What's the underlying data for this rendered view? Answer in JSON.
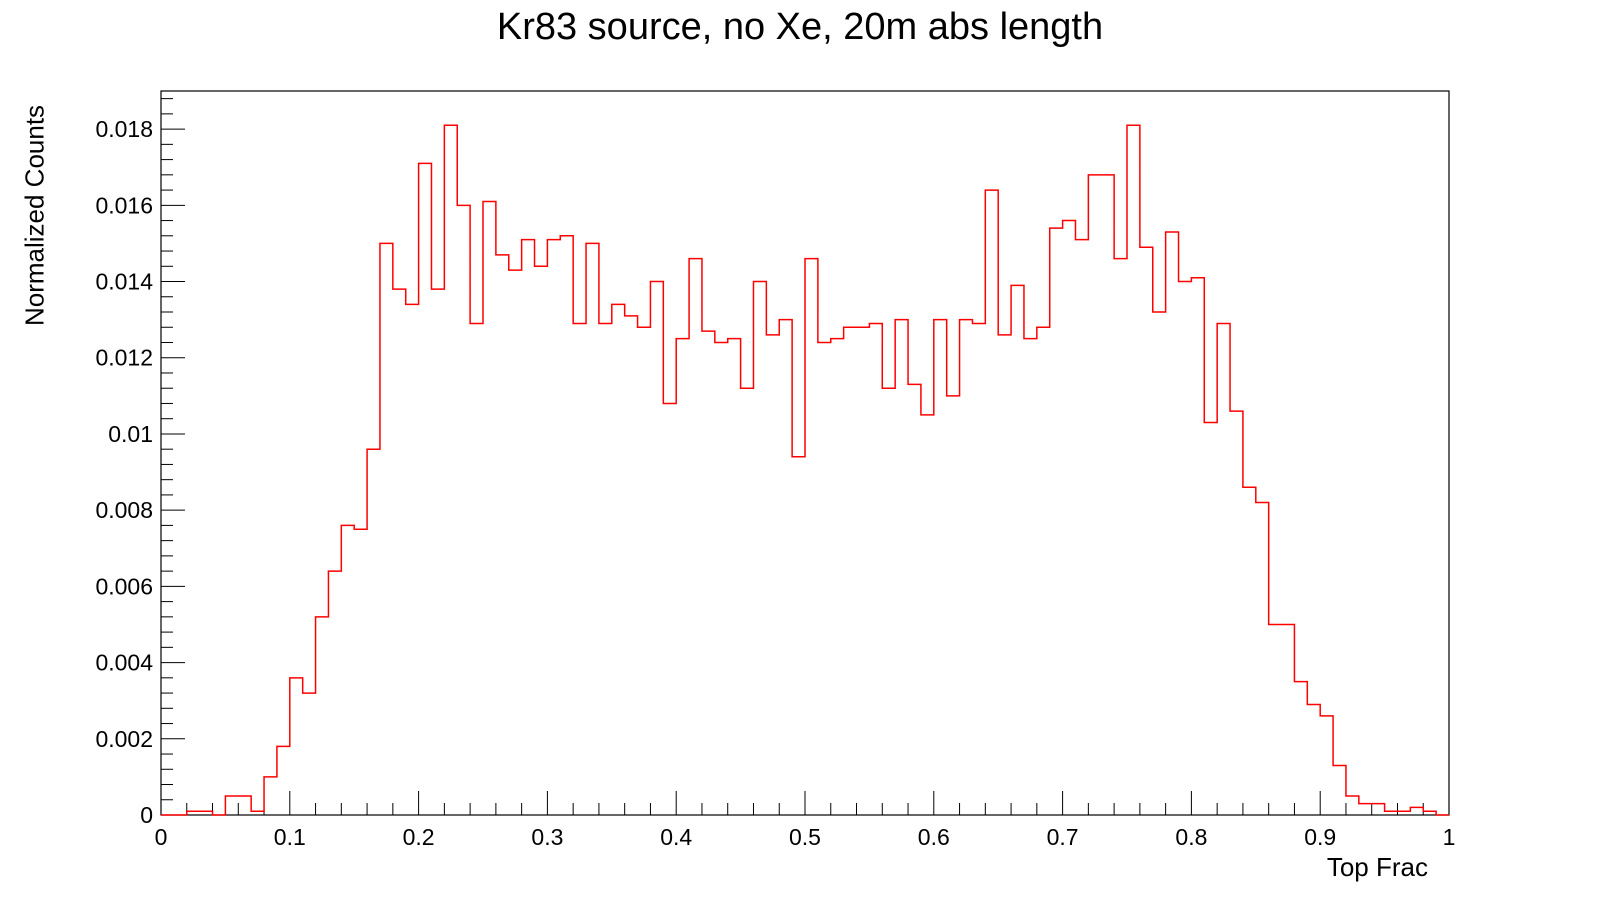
{
  "chart_data": {
    "type": "histogram",
    "title": "Kr83 source, no Xe, 20m abs length",
    "xlabel": "Top Frac",
    "ylabel": "Normalized Counts",
    "xlim": [
      0,
      1
    ],
    "ylim": [
      0,
      0.019
    ],
    "x_ticks": [
      "0",
      "0.1",
      "0.2",
      "0.3",
      "0.4",
      "0.5",
      "0.6",
      "0.7",
      "0.8",
      "0.9",
      "1"
    ],
    "y_ticks": [
      "0",
      "0.002",
      "0.004",
      "0.006",
      "0.008",
      "0.01",
      "0.012",
      "0.014",
      "0.016",
      "0.018"
    ],
    "bin_width": 0.01,
    "line_color": "#ff0000",
    "grid": false,
    "values": [
      0,
      0,
      0.0001,
      0.0001,
      0,
      0.0005,
      0.0005,
      0.0001,
      0.001,
      0.0018,
      0.0036,
      0.0032,
      0.0052,
      0.0064,
      0.0076,
      0.0075,
      0.0096,
      0.015,
      0.0138,
      0.0134,
      0.0171,
      0.0138,
      0.0181,
      0.016,
      0.0129,
      0.0161,
      0.0147,
      0.0143,
      0.0151,
      0.0144,
      0.0151,
      0.0152,
      0.0129,
      0.015,
      0.0129,
      0.0134,
      0.0131,
      0.0128,
      0.014,
      0.0108,
      0.0125,
      0.0146,
      0.0127,
      0.0124,
      0.0125,
      0.0112,
      0.014,
      0.0126,
      0.013,
      0.0094,
      0.0146,
      0.0124,
      0.0125,
      0.0128,
      0.0128,
      0.0129,
      0.0112,
      0.013,
      0.0113,
      0.0105,
      0.013,
      0.011,
      0.013,
      0.0129,
      0.0164,
      0.0126,
      0.0139,
      0.0125,
      0.0128,
      0.0154,
      0.0156,
      0.0151,
      0.0168,
      0.0168,
      0.0146,
      0.0181,
      0.0149,
      0.0132,
      0.0153,
      0.014,
      0.0141,
      0.0103,
      0.0129,
      0.0106,
      0.0086,
      0.0082,
      0.005,
      0.005,
      0.0035,
      0.0029,
      0.0026,
      0.0013,
      0.0005,
      0.0003,
      0.0003,
      0.0001,
      0.0001,
      0.0002,
      0.0001,
      0
    ]
  }
}
